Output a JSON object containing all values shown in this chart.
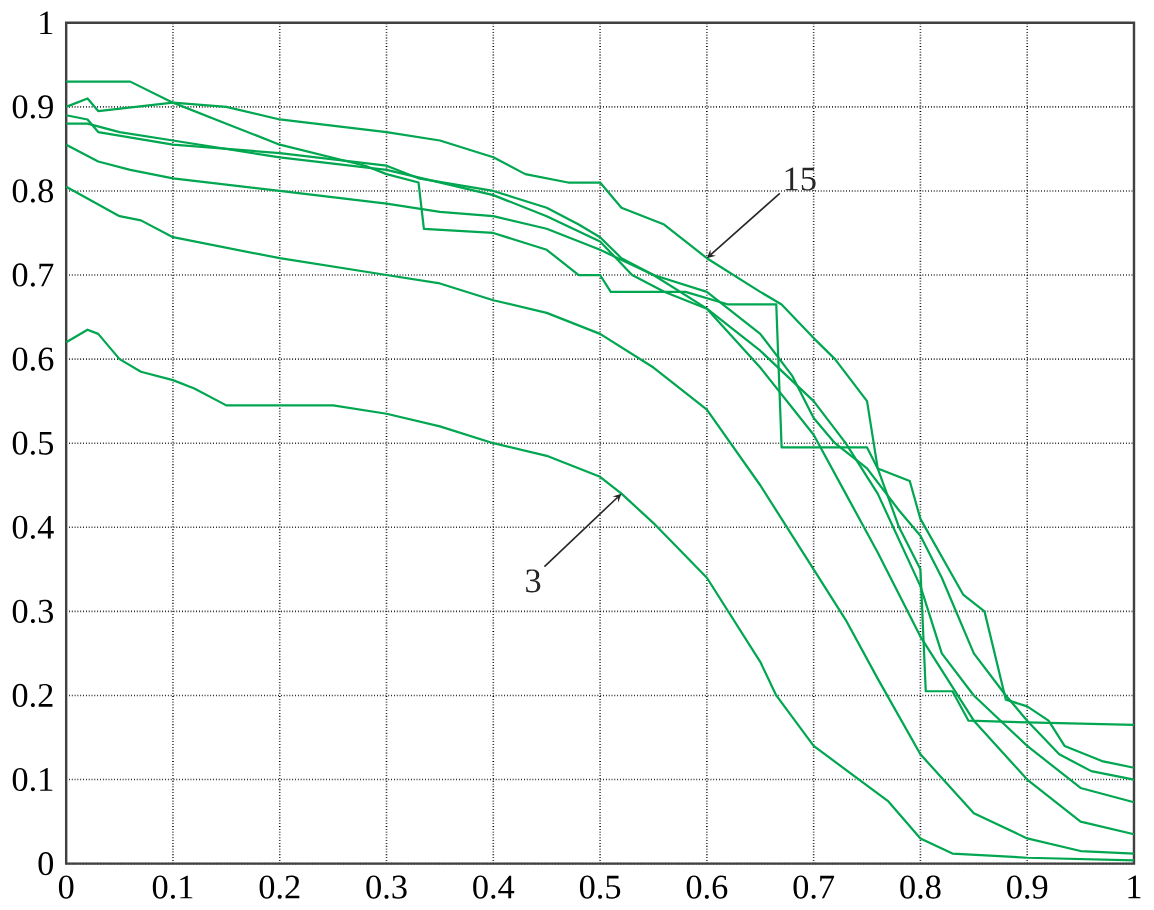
{
  "chart_data": {
    "type": "line",
    "xlim": [
      0,
      1
    ],
    "ylim": [
      0,
      1
    ],
    "xticks": [
      0,
      0.1,
      0.2,
      0.3,
      0.4,
      0.5,
      0.6,
      0.7,
      0.8,
      0.9,
      1
    ],
    "yticks": [
      0,
      0.1,
      0.2,
      0.3,
      0.4,
      0.5,
      0.6,
      0.7,
      0.8,
      0.9,
      1
    ],
    "grid": true,
    "line_style": "solid",
    "annotations": [
      {
        "text": "3",
        "x": 0.52,
        "y": 0.44
      },
      {
        "text": "15",
        "x": 0.6,
        "y": 0.72
      }
    ],
    "series": [
      {
        "color": "#00a650",
        "x": [
          0,
          0.06,
          0.1,
          0.15,
          0.2,
          0.28,
          0.3,
          0.33,
          0.335,
          0.4,
          0.45,
          0.48,
          0.5,
          0.51,
          0.58,
          0.62,
          0.665,
          0.67,
          0.75,
          0.76,
          0.78,
          0.8,
          0.805,
          0.83,
          0.845,
          0.9,
          1
        ],
        "values": [
          0.93,
          0.93,
          0.905,
          0.88,
          0.855,
          0.83,
          0.82,
          0.81,
          0.755,
          0.75,
          0.73,
          0.7,
          0.7,
          0.68,
          0.68,
          0.665,
          0.665,
          0.495,
          0.495,
          0.47,
          0.4,
          0.35,
          0.205,
          0.205,
          0.17,
          0.168,
          0.165
        ]
      },
      {
        "color": "#00a650",
        "x": [
          0,
          0.02,
          0.03,
          0.1,
          0.15,
          0.2,
          0.3,
          0.35,
          0.4,
          0.43,
          0.47,
          0.5,
          0.52,
          0.56,
          0.58,
          0.6,
          0.65,
          0.67,
          0.7,
          0.72,
          0.75,
          0.76,
          0.79,
          0.8,
          0.84,
          0.86,
          0.88,
          0.9,
          0.92,
          0.935,
          0.97,
          1
        ],
        "values": [
          0.9,
          0.91,
          0.895,
          0.905,
          0.9,
          0.885,
          0.87,
          0.86,
          0.84,
          0.82,
          0.81,
          0.81,
          0.78,
          0.76,
          0.74,
          0.72,
          0.68,
          0.665,
          0.625,
          0.6,
          0.55,
          0.47,
          0.455,
          0.41,
          0.32,
          0.3,
          0.195,
          0.187,
          0.17,
          0.14,
          0.122,
          0.114
        ]
      },
      {
        "color": "#00a650",
        "x": [
          0,
          0.02,
          0.03,
          0.1,
          0.2,
          0.3,
          0.33,
          0.4,
          0.45,
          0.48,
          0.5,
          0.52,
          0.55,
          0.6,
          0.65,
          0.68,
          0.7,
          0.72,
          0.75,
          0.78,
          0.8,
          0.82,
          0.85,
          0.88,
          0.9,
          0.93,
          0.96,
          1
        ],
        "values": [
          0.89,
          0.885,
          0.87,
          0.855,
          0.845,
          0.83,
          0.815,
          0.8,
          0.78,
          0.76,
          0.745,
          0.72,
          0.7,
          0.68,
          0.63,
          0.58,
          0.53,
          0.5,
          0.47,
          0.42,
          0.39,
          0.34,
          0.25,
          0.2,
          0.17,
          0.13,
          0.11,
          0.1
        ]
      },
      {
        "color": "#00a650",
        "x": [
          0,
          0.02,
          0.05,
          0.1,
          0.2,
          0.3,
          0.4,
          0.45,
          0.5,
          0.53,
          0.56,
          0.6,
          0.65,
          0.7,
          0.73,
          0.76,
          0.8,
          0.82,
          0.85,
          0.9,
          0.95,
          1
        ],
        "values": [
          0.88,
          0.88,
          0.87,
          0.86,
          0.84,
          0.825,
          0.795,
          0.77,
          0.74,
          0.7,
          0.68,
          0.66,
          0.61,
          0.55,
          0.5,
          0.44,
          0.33,
          0.25,
          0.2,
          0.14,
          0.09,
          0.073
        ]
      },
      {
        "color": "#00a650",
        "x": [
          0,
          0.03,
          0.06,
          0.1,
          0.2,
          0.3,
          0.35,
          0.4,
          0.45,
          0.5,
          0.55,
          0.6,
          0.65,
          0.7,
          0.73,
          0.76,
          0.8,
          0.85,
          0.9,
          0.95,
          1
        ],
        "values": [
          0.855,
          0.835,
          0.825,
          0.815,
          0.8,
          0.785,
          0.775,
          0.77,
          0.755,
          0.73,
          0.7,
          0.66,
          0.59,
          0.51,
          0.44,
          0.37,
          0.27,
          0.17,
          0.1,
          0.05,
          0.035
        ]
      },
      {
        "color": "#00a650",
        "x": [
          0,
          0.05,
          0.07,
          0.1,
          0.2,
          0.3,
          0.35,
          0.4,
          0.45,
          0.5,
          0.55,
          0.6,
          0.65,
          0.7,
          0.73,
          0.76,
          0.8,
          0.85,
          0.9,
          0.95,
          1
        ],
        "values": [
          0.805,
          0.77,
          0.765,
          0.745,
          0.72,
          0.7,
          0.69,
          0.67,
          0.655,
          0.63,
          0.59,
          0.54,
          0.45,
          0.35,
          0.29,
          0.22,
          0.13,
          0.06,
          0.03,
          0.015,
          0.012
        ]
      },
      {
        "color": "#00a650",
        "x": [
          0,
          0.02,
          0.03,
          0.05,
          0.07,
          0.1,
          0.12,
          0.15,
          0.2,
          0.25,
          0.3,
          0.35,
          0.4,
          0.45,
          0.5,
          0.52,
          0.55,
          0.6,
          0.65,
          0.665,
          0.7,
          0.77,
          0.8,
          0.83,
          0.9,
          1
        ],
        "values": [
          0.62,
          0.635,
          0.63,
          0.6,
          0.585,
          0.575,
          0.565,
          0.545,
          0.545,
          0.545,
          0.535,
          0.52,
          0.5,
          0.485,
          0.46,
          0.44,
          0.405,
          0.34,
          0.24,
          0.2,
          0.14,
          0.074,
          0.03,
          0.012,
          0.007,
          0.004
        ]
      }
    ]
  }
}
